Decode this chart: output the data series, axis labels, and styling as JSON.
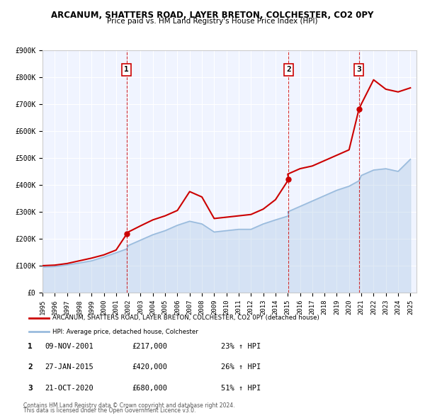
{
  "title": "ARCANUM, SHATTERS ROAD, LAYER BRETON, COLCHESTER, CO2 0PY",
  "subtitle": "Price paid vs. HM Land Registry's House Price Index (HPI)",
  "legend_line1": "ARCANUM, SHATTERS ROAD, LAYER BRETON, COLCHESTER, CO2 0PY (detached house)",
  "legend_line2": "HPI: Average price, detached house, Colchester",
  "footer1": "Contains HM Land Registry data © Crown copyright and database right 2024.",
  "footer2": "This data is licensed under the Open Government Licence v3.0.",
  "sales": [
    {
      "label": "1",
      "date": "09-NOV-2001",
      "price": 217000,
      "pct": "23%",
      "year_x": 2001.86
    },
    {
      "label": "2",
      "date": "27-JAN-2015",
      "price": 420000,
      "pct": "26%",
      "year_x": 2015.07
    },
    {
      "label": "3",
      "date": "21-OCT-2020",
      "price": 680000,
      "pct": "51%",
      "year_x": 2020.8
    }
  ],
  "property_color": "#cc0000",
  "hpi_color": "#99bbdd",
  "vline_color": "#cc0000",
  "sale_dot_color": "#cc0000",
  "background_color": "#f0f4ff",
  "ylim": [
    0,
    900000
  ],
  "xlim_start": 1995.0,
  "xlim_end": 2025.5,
  "hpi_x": [
    1995,
    1996,
    1997,
    1998,
    1999,
    2000,
    2001,
    2001.86,
    2002,
    2003,
    2004,
    2005,
    2006,
    2007,
    2008,
    2009,
    2010,
    2011,
    2012,
    2013,
    2014,
    2015.07,
    2015,
    2016,
    2017,
    2018,
    2019,
    2020,
    2020.8,
    2021,
    2022,
    2023,
    2024,
    2025
  ],
  "hpi_y": [
    95000,
    97000,
    103000,
    110000,
    118000,
    132000,
    148000,
    162000,
    175000,
    195000,
    215000,
    230000,
    250000,
    265000,
    255000,
    225000,
    230000,
    235000,
    235000,
    255000,
    270000,
    285000,
    300000,
    320000,
    340000,
    360000,
    380000,
    395000,
    415000,
    435000,
    455000,
    460000,
    450000,
    495000
  ],
  "property_x": [
    1995,
    1996,
    1997,
    1998,
    1999,
    2000,
    2001,
    2001.86,
    2002,
    2003,
    2004,
    2005,
    2006,
    2007,
    2008,
    2009,
    2010,
    2011,
    2012,
    2013,
    2014,
    2015.07,
    2015,
    2016,
    2017,
    2018,
    2019,
    2020,
    2020.8,
    2021,
    2022,
    2023,
    2024,
    2025
  ],
  "property_y": [
    100000,
    102000,
    108000,
    118000,
    128000,
    140000,
    158000,
    217000,
    225000,
    248000,
    270000,
    285000,
    305000,
    375000,
    355000,
    275000,
    280000,
    285000,
    290000,
    310000,
    345000,
    420000,
    440000,
    460000,
    470000,
    490000,
    510000,
    530000,
    680000,
    700000,
    790000,
    755000,
    745000,
    760000
  ]
}
